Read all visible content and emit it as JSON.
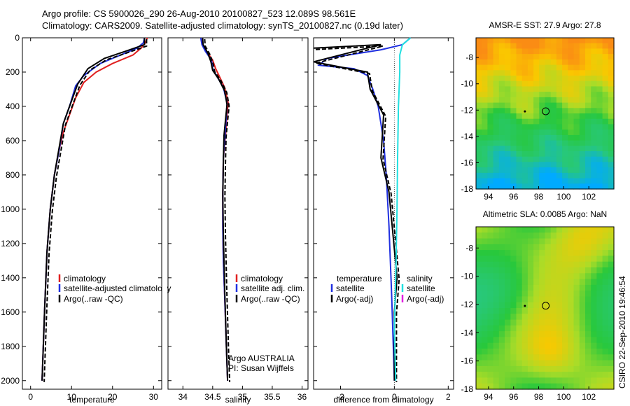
{
  "header": {
    "line1": "Argo profile: CS 5900026_290 26-Aug-2010 20100827_523 12.089S 98.561E",
    "line2": "Climatology: CARS2009. Satellite-adjusted climatology: synTS_20100827.nc (0.19d later)"
  },
  "side_note": "CSIRO 22-Sep-2010 19:46:54",
  "colors": {
    "clim": "#e02020",
    "sat": "#2030e0",
    "argo": "#000000",
    "sal_sat": "#20e0e0",
    "sal_argo": "#e020e0"
  },
  "chart_data": [
    {
      "type": "line",
      "panel": "temperature",
      "xlabel": "temperature",
      "ylabel": "",
      "xlim": [
        -2,
        32
      ],
      "ylim": [
        0,
        2050
      ],
      "y_inverted": true,
      "xticks": [
        0,
        10,
        20,
        30
      ],
      "yticks": [
        0,
        200,
        400,
        600,
        800,
        1000,
        1200,
        1400,
        1600,
        1800,
        2000
      ],
      "legend": [
        "climatology",
        "satellite-adjusted climatology",
        "Argo(..raw -QC)"
      ],
      "series": [
        {
          "name": "climatology",
          "color_key": "clim",
          "x": [
            28.5,
            28,
            27,
            25,
            20,
            16,
            13,
            11,
            9.5,
            8,
            7,
            5.8,
            4.8,
            4,
            3.4,
            2.8
          ],
          "y": [
            0,
            30,
            60,
            100,
            150,
            200,
            260,
            350,
            450,
            550,
            650,
            800,
            1000,
            1250,
            1600,
            2000
          ]
        },
        {
          "name": "satellite-adjusted climatology",
          "color_key": "sat",
          "x": [
            27.8,
            27.5,
            26,
            22,
            17,
            13,
            11,
            9.5,
            8,
            7,
            5.8,
            4.8,
            4,
            3.4,
            2.8
          ],
          "y": [
            0,
            30,
            60,
            100,
            150,
            220,
            280,
            400,
            500,
            650,
            800,
            1000,
            1250,
            1600,
            2000
          ]
        },
        {
          "name": "Argo(..raw -QC)",
          "color_key": "argo",
          "x": [
            27.8,
            27.8,
            23,
            18,
            14,
            11.5,
            9.5,
            8,
            6.9,
            5.8,
            4.8,
            4,
            3.4,
            2.8
          ],
          "y": [
            0,
            40,
            80,
            120,
            180,
            270,
            400,
            500,
            650,
            800,
            1000,
            1250,
            1600,
            2000
          ]
        }
      ]
    },
    {
      "type": "line",
      "panel": "salinity",
      "xlabel": "salinity",
      "ylabel": "",
      "xlim": [
        33.75,
        36.1
      ],
      "ylim": [
        0,
        2050
      ],
      "y_inverted": true,
      "xticks": [
        34,
        34.5,
        35,
        35.5,
        36
      ],
      "legend": [
        "climatology",
        "satellite adj. clim.",
        "Argo(..raw -QC)"
      ],
      "annotations": [
        "Argo AUSTRALIA",
        "PI: Susan Wijffels"
      ],
      "series": [
        {
          "name": "climatology",
          "color_key": "clim",
          "x": [
            34.33,
            34.33,
            34.4,
            34.5,
            34.55,
            34.62,
            34.7,
            34.76,
            34.74,
            34.72,
            34.68,
            34.67,
            34.67,
            34.68,
            34.7,
            34.73,
            34.75
          ],
          "y": [
            0,
            40,
            80,
            130,
            180,
            230,
            290,
            380,
            450,
            550,
            700,
            900,
            1100,
            1300,
            1500,
            1800,
            2000
          ]
        },
        {
          "name": "satellite adj. clim.",
          "color_key": "sat",
          "x": [
            34.3,
            34.32,
            34.38,
            34.48,
            34.5,
            34.58,
            34.68,
            34.74,
            34.73,
            34.71,
            34.68,
            34.67,
            34.67,
            34.68,
            34.7,
            34.73,
            34.75
          ],
          "y": [
            0,
            40,
            80,
            130,
            180,
            230,
            290,
            380,
            450,
            550,
            700,
            900,
            1100,
            1300,
            1500,
            1800,
            2000
          ]
        },
        {
          "name": "Argo(..raw -QC)",
          "color_key": "argo",
          "x": [
            34.33,
            34.34,
            34.42,
            34.47,
            34.5,
            34.6,
            34.7,
            34.74,
            34.72,
            34.69,
            34.68,
            34.67,
            34.68,
            34.7,
            34.73,
            34.75
          ],
          "y": [
            0,
            40,
            90,
            140,
            190,
            240,
            310,
            390,
            460,
            570,
            720,
            920,
            1150,
            1450,
            1800,
            2000
          ]
        }
      ]
    },
    {
      "type": "line",
      "panel": "difference",
      "xlabel": "difference from climatology",
      "xlim": [
        -3,
        2.2
      ],
      "ylim": [
        0,
        2050
      ],
      "y_inverted": true,
      "xticks": [
        -2,
        0,
        2
      ],
      "legend_headers": [
        "temperature",
        "salinity"
      ],
      "legend": [
        "satellite",
        "Argo(-adj)",
        "satellite",
        "Argo(-adj)"
      ],
      "series": [
        {
          "name": "temperature satellite",
          "color_key": "sat",
          "x": [
            0.6,
            0.3,
            -0.5,
            -2.5,
            -2.8,
            -1.5,
            -1,
            -0.8,
            -0.6,
            -0.4,
            -0.3,
            -0.2,
            -0.1,
            0
          ],
          "y": [
            0,
            40,
            70,
            120,
            160,
            180,
            220,
            300,
            400,
            600,
            800,
            1100,
            1500,
            2000
          ]
        },
        {
          "name": "temperature Argo(-adj)",
          "color_key": "argo",
          "x": [
            -3,
            -0.5,
            -3,
            -1,
            -0.9,
            -0.4,
            -0.5,
            -0.2,
            0.1,
            0,
            0
          ],
          "y": [
            60,
            40,
            140,
            200,
            300,
            450,
            700,
            900,
            1400,
            1600,
            2000
          ]
        },
        {
          "name": "salinity satellite",
          "color_key": "sal_sat",
          "x": [
            0.6,
            0.3,
            0.2,
            0.2,
            0.15,
            0.12,
            0.1,
            0.05,
            0,
            0.05
          ],
          "y": [
            0,
            40,
            100,
            200,
            400,
            700,
            1000,
            1400,
            1700,
            2000
          ]
        }
      ]
    },
    {
      "type": "heatmap",
      "panel": "map",
      "title": "AMSR-E SST: 27.9 Argo: 27.8",
      "xticks": [
        94,
        96,
        98,
        100,
        102
      ],
      "yticks": [
        -8,
        -10,
        -12,
        -14,
        -16,
        -18
      ],
      "xlim": [
        93,
        104
      ],
      "ylim": [
        -18,
        -6.5
      ]
    },
    {
      "type": "heatmap",
      "panel": "map",
      "title": "Altimetric SLA: 0.0085 Argo: NaN",
      "xticks": [
        94,
        96,
        98,
        100,
        102
      ],
      "yticks": [
        -8,
        -10,
        -12,
        -14,
        -16,
        -18
      ],
      "xlim": [
        93,
        104
      ],
      "ylim": [
        -18,
        -6.5
      ]
    }
  ]
}
